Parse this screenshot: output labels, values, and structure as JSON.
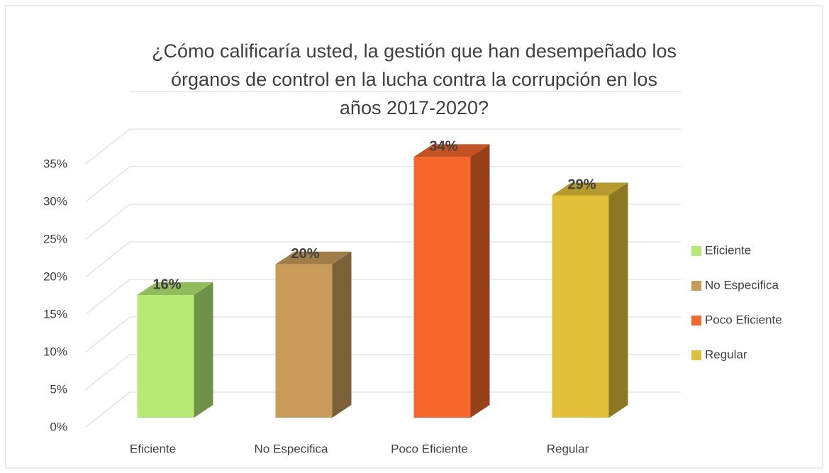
{
  "chart_data": {
    "type": "bar3d",
    "title": "¿Cómo calificaría usted, la gestión que han desempeñado los órganos de control en la lucha contra la corrupción en los años 2017-2020?",
    "categories": [
      "Eficiente",
      "No Especifica",
      "Poco Eficiente",
      "Regular"
    ],
    "values": [
      16,
      20,
      34,
      29
    ],
    "value_labels": [
      "16%",
      "20%",
      "34%",
      "29%"
    ],
    "colors": [
      "#b5eb74",
      "#c89b59",
      "#f5672a",
      "#e2c13a"
    ],
    "ylim": [
      0,
      35
    ],
    "yticks": [
      {
        "value": 0,
        "label": "0%"
      },
      {
        "value": 5,
        "label": "5%"
      },
      {
        "value": 10,
        "label": "10%"
      },
      {
        "value": 15,
        "label": "15%"
      },
      {
        "value": 20,
        "label": "20%"
      },
      {
        "value": 25,
        "label": "25%"
      },
      {
        "value": 30,
        "label": "30%"
      },
      {
        "value": 35,
        "label": "35%"
      }
    ],
    "grid": true,
    "legend": "right"
  }
}
